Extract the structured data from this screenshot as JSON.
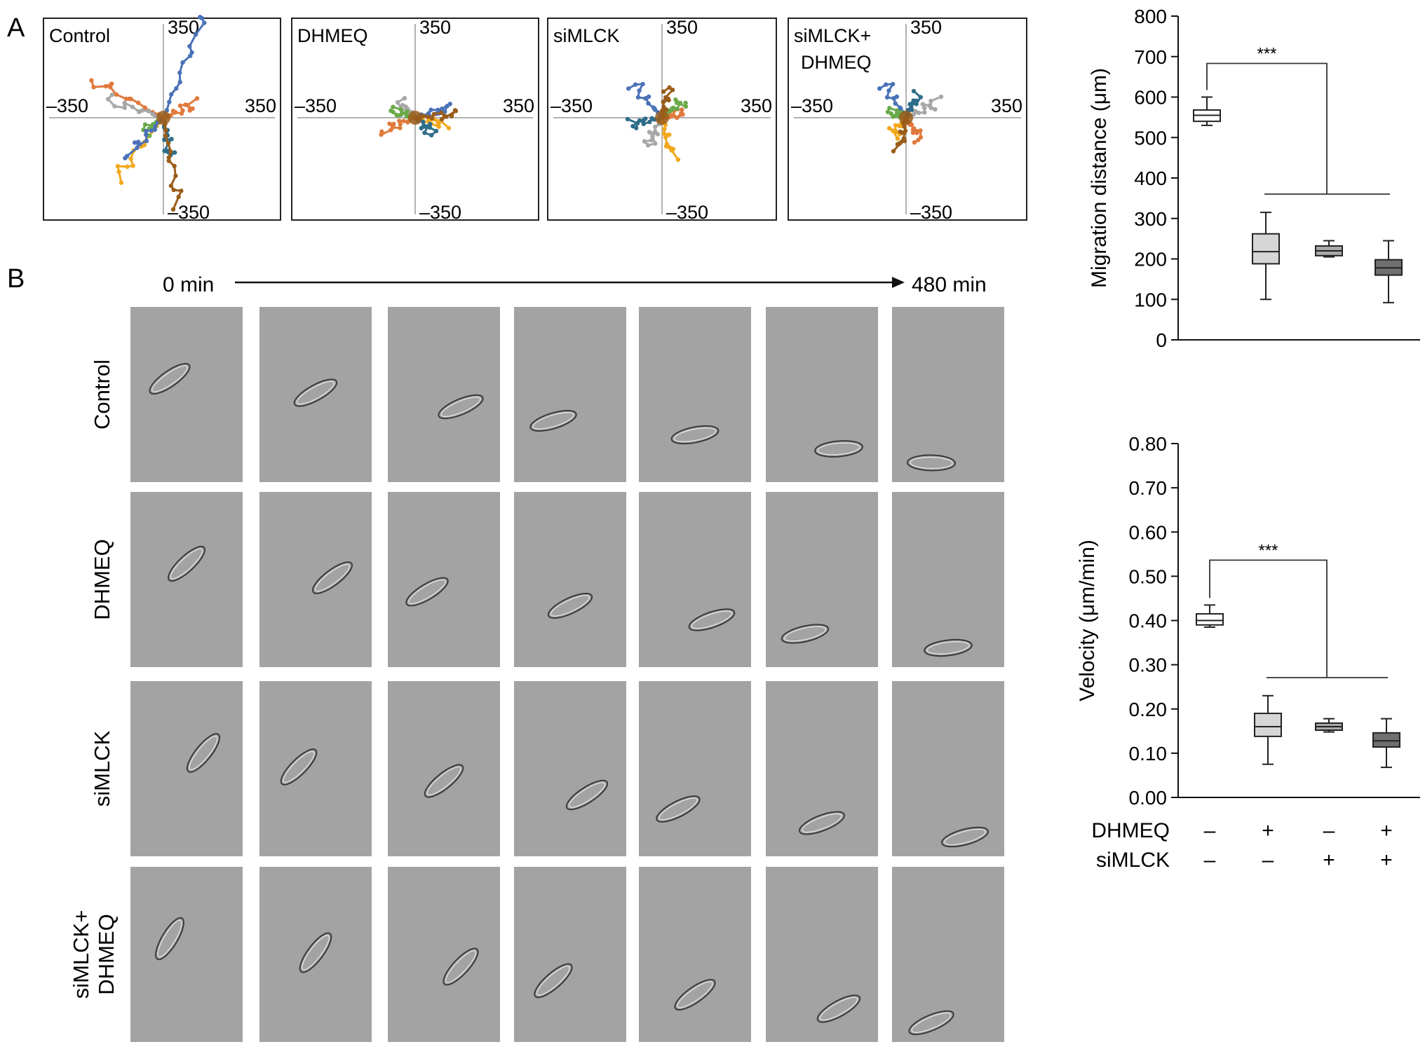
{
  "panel_a": {
    "letter": "A",
    "plots": [
      {
        "label_lines": [
          "Control"
        ],
        "tick_top": "350",
        "tick_bottom": "–350",
        "tick_left": "–350",
        "tick_right": "350"
      },
      {
        "label_lines": [
          "DHMEQ"
        ],
        "tick_top": "350",
        "tick_bottom": "–350",
        "tick_left": "–350",
        "tick_right": "350"
      },
      {
        "label_lines": [
          "siMLCK"
        ],
        "tick_top": "350",
        "tick_bottom": "–350",
        "tick_left": "–350",
        "tick_right": "350"
      },
      {
        "label_lines": [
          "siMLCK+",
          "DHMEQ"
        ],
        "tick_top": "350",
        "tick_bottom": "–350",
        "tick_left": "–350",
        "tick_right": "350"
      }
    ],
    "track_colors": [
      "#4a72b8",
      "#e07a3c",
      "#a7a7a7",
      "#f2a81d",
      "#6aaa4a",
      "#2f6d8a",
      "#9a5d1a"
    ]
  },
  "panel_b": {
    "letter": "B",
    "time_start": "0 min",
    "time_end": "480 min",
    "row_labels": [
      [
        "Control"
      ],
      [
        "DHMEQ"
      ],
      [
        "siMLCK"
      ],
      [
        "siMLCK+",
        "DHMEQ"
      ]
    ],
    "frames_per_row": 7,
    "background_color": "#a3a3a3"
  },
  "chart_data": [
    {
      "type": "box",
      "ylabel": "Migration distance (μm)",
      "ylim": [
        0,
        800
      ],
      "yticks": [
        "0",
        "100",
        "200",
        "300",
        "400",
        "500",
        "600",
        "700",
        "800"
      ],
      "yticks_values": [
        0,
        100,
        200,
        300,
        400,
        500,
        600,
        700,
        800
      ],
      "significance": "***",
      "groups": [
        {
          "min": 530,
          "q1": 540,
          "median": 555,
          "q3": 568,
          "max": 600,
          "color": "#ffffff"
        },
        {
          "min": 100,
          "q1": 188,
          "median": 218,
          "q3": 262,
          "max": 315,
          "color": "#d6d6d6"
        },
        {
          "min": 205,
          "q1": 208,
          "median": 220,
          "q3": 232,
          "max": 245,
          "color": "#a9a9a9"
        },
        {
          "min": 92,
          "q1": 160,
          "median": 178,
          "q3": 198,
          "max": 245,
          "color": "#6f6f6f"
        }
      ]
    },
    {
      "type": "box",
      "ylabel": "Velocity (μm/min)",
      "ylim": [
        0,
        0.8
      ],
      "yticks": [
        "0.00",
        "0.10",
        "0.20",
        "0.30",
        "0.40",
        "0.50",
        "0.60",
        "0.70",
        "0.80"
      ],
      "yticks_values": [
        0,
        0.1,
        0.2,
        0.3,
        0.4,
        0.5,
        0.6,
        0.7,
        0.8
      ],
      "significance": "***",
      "groups": [
        {
          "min": 0.385,
          "q1": 0.39,
          "median": 0.4,
          "q3": 0.415,
          "max": 0.435,
          "color": "#ffffff"
        },
        {
          "min": 0.075,
          "q1": 0.138,
          "median": 0.16,
          "q3": 0.19,
          "max": 0.23,
          "color": "#d6d6d6"
        },
        {
          "min": 0.148,
          "q1": 0.152,
          "median": 0.16,
          "q3": 0.168,
          "max": 0.178,
          "color": "#a9a9a9"
        },
        {
          "min": 0.068,
          "q1": 0.114,
          "median": 0.128,
          "q3": 0.146,
          "max": 0.178,
          "color": "#6f6f6f"
        }
      ],
      "conditions": [
        {
          "name": "DHMEQ",
          "values": [
            "–",
            "+",
            "–",
            "+"
          ]
        },
        {
          "name": "siMLCK",
          "values": [
            "–",
            "–",
            "+",
            "+"
          ]
        }
      ]
    }
  ]
}
